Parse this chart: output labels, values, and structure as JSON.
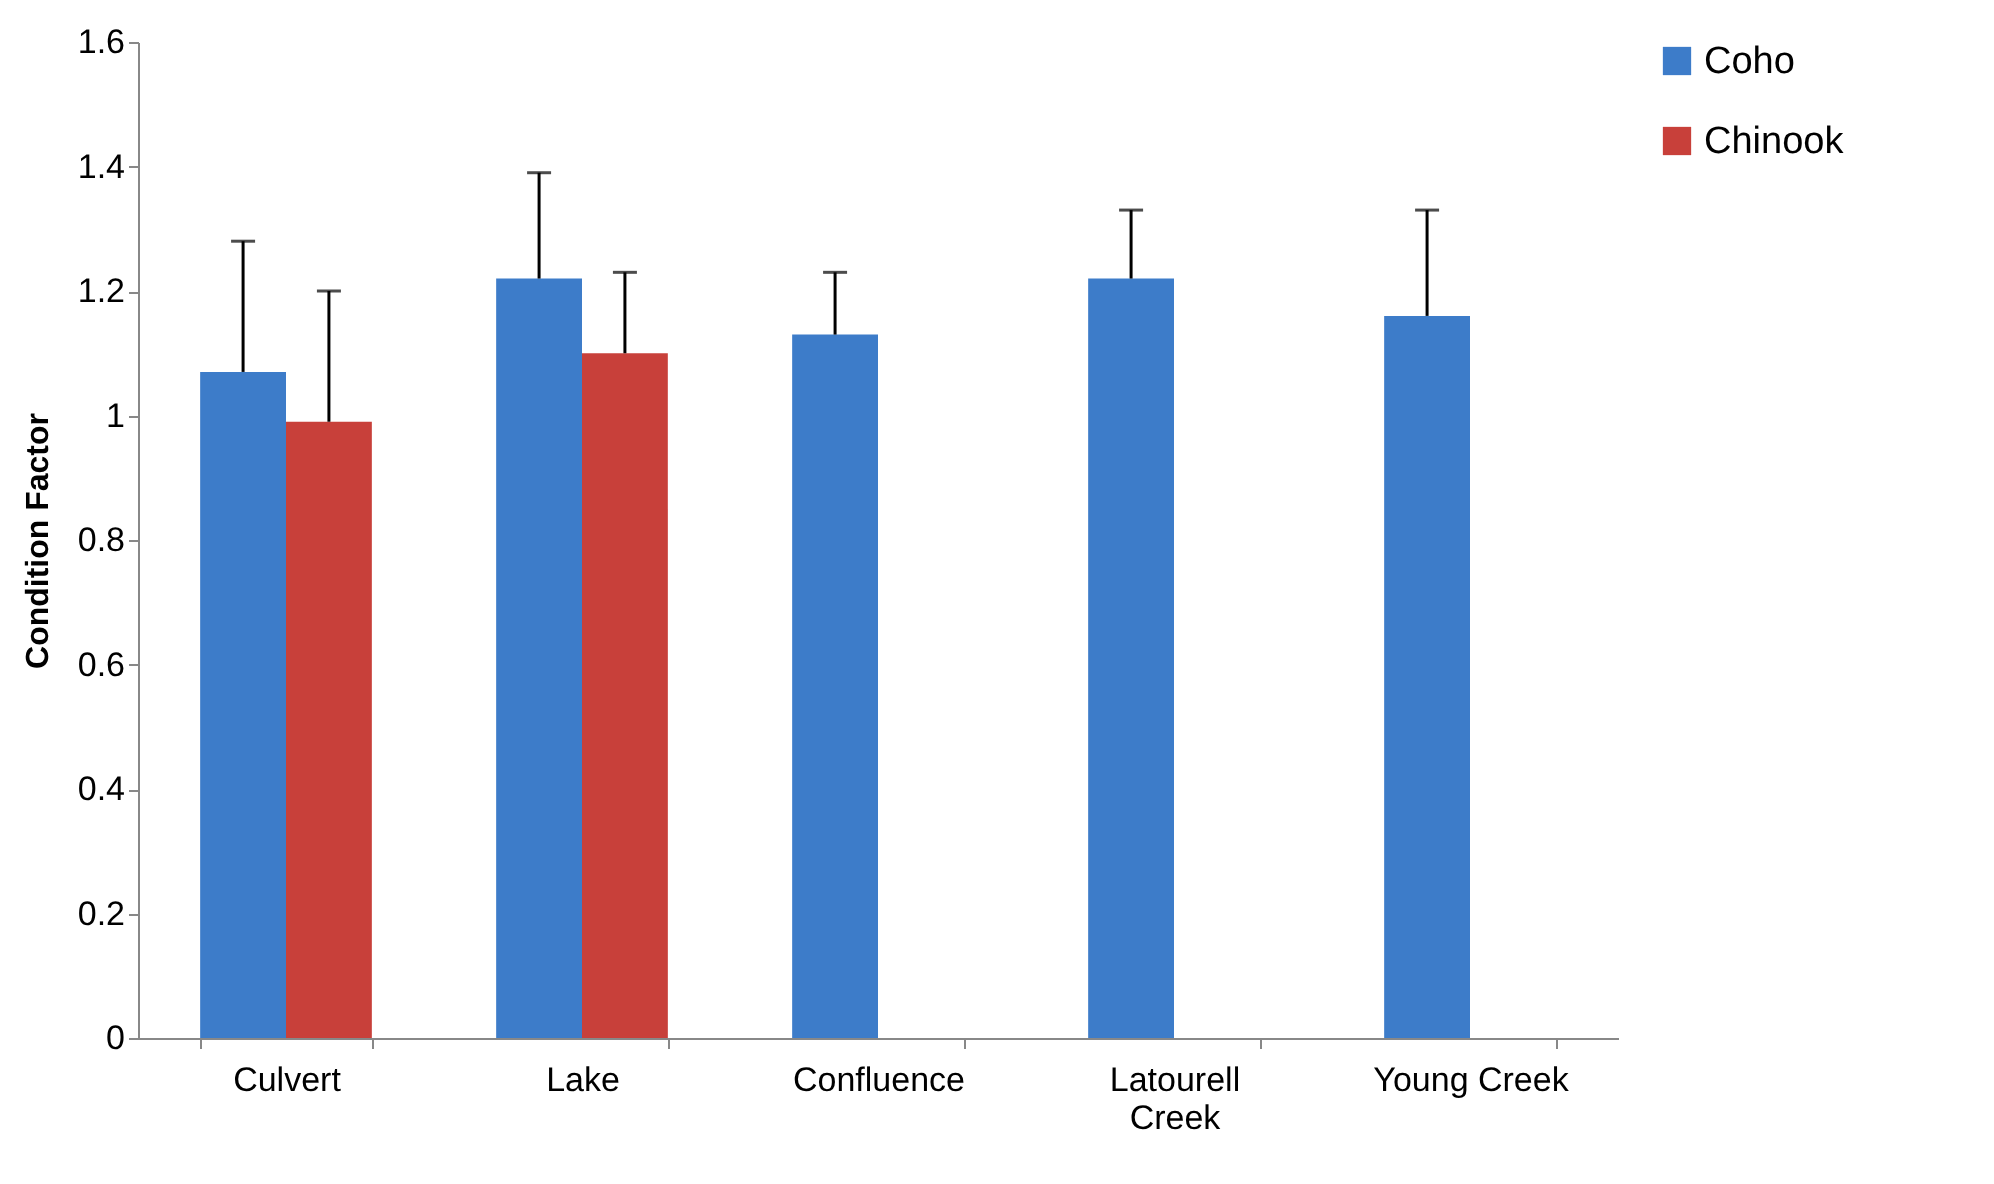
{
  "chart_data": {
    "type": "bar",
    "ylabel": "Condition Factor",
    "categories": [
      "Culvert",
      "Lake",
      "Confluence",
      "Latourell Creek",
      "Young Creek"
    ],
    "series": [
      {
        "name": "Coho",
        "color": "#3d7cc9",
        "values": [
          1.07,
          1.22,
          1.13,
          1.22,
          1.16
        ],
        "errors": [
          [
            1.07,
            1.28
          ],
          [
            1.22,
            1.39
          ],
          [
            1.13,
            1.23
          ],
          [
            1.22,
            1.33
          ],
          [
            1.16,
            1.33
          ]
        ]
      },
      {
        "name": "Chinook",
        "color": "#c8403a",
        "values": [
          0.99,
          1.1,
          null,
          null,
          null
        ],
        "errors": [
          [
            0.99,
            1.2
          ],
          [
            1.1,
            1.23
          ],
          null,
          null,
          null
        ]
      }
    ],
    "ylim": [
      0,
      1.6
    ],
    "yticks": [
      0,
      0.2,
      0.4,
      0.6,
      0.8,
      1,
      1.2,
      1.4,
      1.6
    ],
    "grid": false,
    "legend": "right"
  }
}
